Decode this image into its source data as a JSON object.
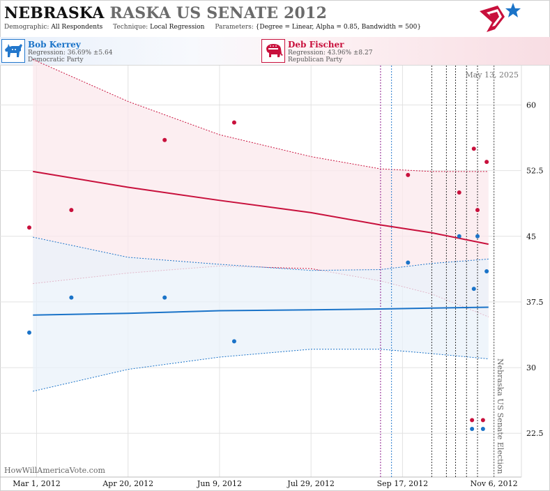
{
  "header": {
    "title_state": "NEBRASKA",
    "title_rest": "RASKA US SENATE 2012",
    "demographic_key": "Demographic:",
    "demographic": "All Respondents",
    "technique_key": "Technique:",
    "technique": "Local Regression",
    "parameters_key": "Parameters:",
    "parameters": "{Degree = Linear, Alpha = 0.85, Bandwidth = 500}"
  },
  "candidates": [
    {
      "name": "Bob Kerrey",
      "regression": "Regression: 36.69% ±5.64",
      "party": "Democratic Party",
      "icon": "donkey-icon",
      "color": "#1a73c8"
    },
    {
      "name": "Deb Fischer",
      "regression": "Regression: 43.96% ±8.27",
      "party": "Republican Party",
      "icon": "elephant-icon",
      "color": "#c8103c"
    }
  ],
  "colors": {
    "democrat": "#1a73c8",
    "republican": "#c8103c",
    "dem_band": "#eaf1fa",
    "rep_band": "#fbe8ec"
  },
  "watermark": "HowWillAmericaVote.com",
  "chart_data": {
    "type": "scatter",
    "date_label": "May 13, 2025",
    "event_label": "Nebraska US Senate Election",
    "xlim": [
      "2012-02-10",
      "2012-11-21"
    ],
    "ylim": [
      17.5,
      64.5
    ],
    "y_ticks": [
      22.5,
      30,
      37.5,
      45,
      52.5,
      60
    ],
    "y_tick_labels": [
      "22.5",
      "30",
      "37.5",
      "45",
      "52.5",
      "60"
    ],
    "x_ticks": [
      "2012-03-01",
      "2012-04-20",
      "2012-06-09",
      "2012-07-29",
      "2012-09-17",
      "2012-11-06"
    ],
    "x_tick_labels": [
      "Mar 1, 2012",
      "Apr 20, 2012",
      "Jun 9, 2012",
      "Jul 29, 2012",
      "Sep 17, 2012",
      "Nov 6, 2012"
    ],
    "event_lines": [
      {
        "date": "2012-09-05",
        "color": "#8b1a8b"
      },
      {
        "date": "2012-09-11",
        "color": "#2277cc"
      },
      {
        "date": "2012-10-03",
        "color": "#333333"
      },
      {
        "date": "2012-10-11",
        "color": "#333333"
      },
      {
        "date": "2012-10-16",
        "color": "#333333"
      },
      {
        "date": "2012-10-22",
        "color": "#333333"
      },
      {
        "date": "2012-10-28",
        "color": "#333333"
      },
      {
        "date": "2012-11-06",
        "color": "#555555"
      }
    ],
    "series": [
      {
        "name": "Deb Fischer",
        "party": "rep",
        "points": [
          {
            "x": "2012-02-26",
            "y": 46
          },
          {
            "x": "2012-03-20",
            "y": 48
          },
          {
            "x": "2012-05-10",
            "y": 56
          },
          {
            "x": "2012-06-17",
            "y": 58
          },
          {
            "x": "2012-09-20",
            "y": 52
          },
          {
            "x": "2012-10-18",
            "y": 50
          },
          {
            "x": "2012-10-26",
            "y": 55
          },
          {
            "x": "2012-10-28",
            "y": 48
          },
          {
            "x": "2012-11-02",
            "y": 53.5
          },
          {
            "x": "2012-10-25",
            "y": 24
          },
          {
            "x": "2012-10-31",
            "y": 24
          }
        ],
        "trend": [
          {
            "x": "2012-02-28",
            "y": 52.4,
            "lo": 39.6,
            "hi": 65.2
          },
          {
            "x": "2012-04-20",
            "y": 50.6,
            "lo": 40.8,
            "hi": 60.4
          },
          {
            "x": "2012-06-09",
            "y": 49.1,
            "lo": 41.6,
            "hi": 56.6
          },
          {
            "x": "2012-07-29",
            "y": 47.7,
            "lo": 41.3,
            "hi": 54.1
          },
          {
            "x": "2012-09-05",
            "y": 46.3,
            "lo": 39.9,
            "hi": 52.7
          },
          {
            "x": "2012-10-03",
            "y": 45.4,
            "lo": 38.4,
            "hi": 52.4
          },
          {
            "x": "2012-11-03",
            "y": 44.1,
            "lo": 35.8,
            "hi": 52.4
          }
        ]
      },
      {
        "name": "Bob Kerrey",
        "party": "dem",
        "points": [
          {
            "x": "2012-02-26",
            "y": 34
          },
          {
            "x": "2012-03-20",
            "y": 38
          },
          {
            "x": "2012-05-10",
            "y": 38
          },
          {
            "x": "2012-06-17",
            "y": 33
          },
          {
            "x": "2012-09-20",
            "y": 42
          },
          {
            "x": "2012-10-18",
            "y": 45
          },
          {
            "x": "2012-10-26",
            "y": 39
          },
          {
            "x": "2012-10-28",
            "y": 45
          },
          {
            "x": "2012-11-02",
            "y": 41
          },
          {
            "x": "2012-10-25",
            "y": 23
          },
          {
            "x": "2012-10-31",
            "y": 23
          }
        ],
        "trend": [
          {
            "x": "2012-02-28",
            "y": 36.0,
            "lo": 27.3,
            "hi": 44.9
          },
          {
            "x": "2012-04-20",
            "y": 36.2,
            "lo": 29.8,
            "hi": 42.6
          },
          {
            "x": "2012-06-09",
            "y": 36.5,
            "lo": 31.2,
            "hi": 41.8
          },
          {
            "x": "2012-07-29",
            "y": 36.6,
            "lo": 32.1,
            "hi": 41.1
          },
          {
            "x": "2012-09-05",
            "y": 36.7,
            "lo": 32.1,
            "hi": 41.2
          },
          {
            "x": "2012-10-03",
            "y": 36.8,
            "lo": 31.6,
            "hi": 41.9
          },
          {
            "x": "2012-11-03",
            "y": 36.9,
            "lo": 31.0,
            "hi": 42.4
          }
        ]
      }
    ]
  }
}
